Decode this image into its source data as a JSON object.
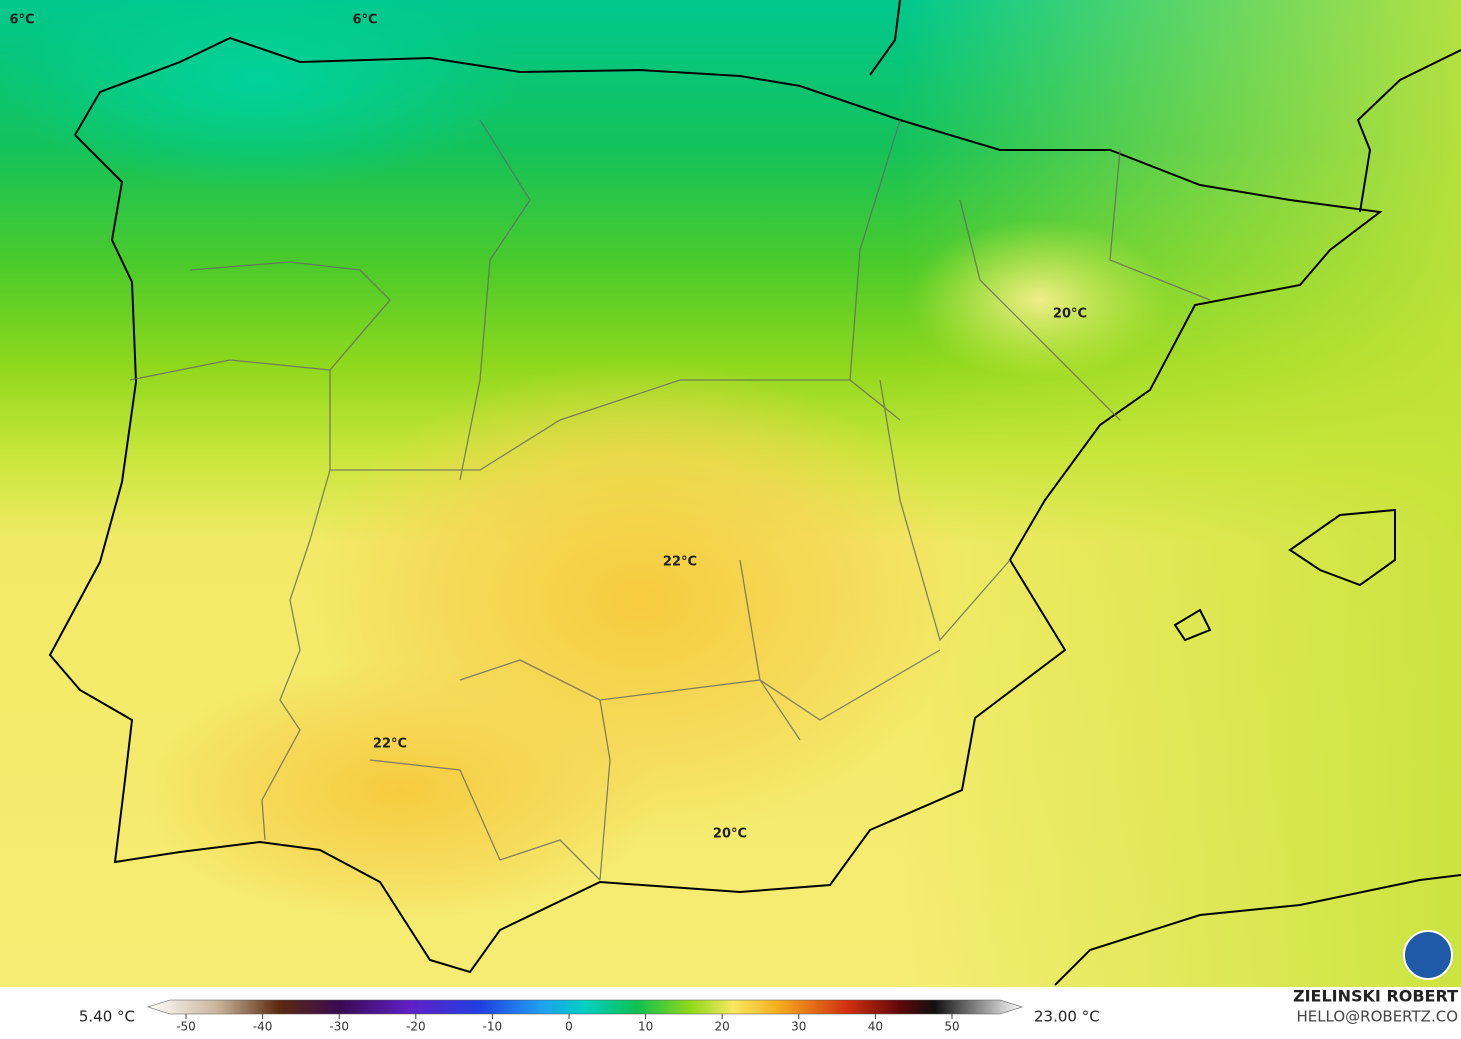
{
  "map": {
    "labels": [
      "6°C",
      "6°C",
      "20°C",
      "22°C",
      "22°C",
      "20°C"
    ]
  },
  "colorbar": {
    "min_label": "5.40 °C",
    "max_label": "23.00 °C",
    "ticks": [
      -50,
      -40,
      -30,
      -20,
      -10,
      0,
      10,
      20,
      30,
      40,
      50
    ]
  },
  "credits": {
    "author": "ZIELINSKI ROBERT",
    "contact": "HELLO@ROBERTZ.CO"
  }
}
